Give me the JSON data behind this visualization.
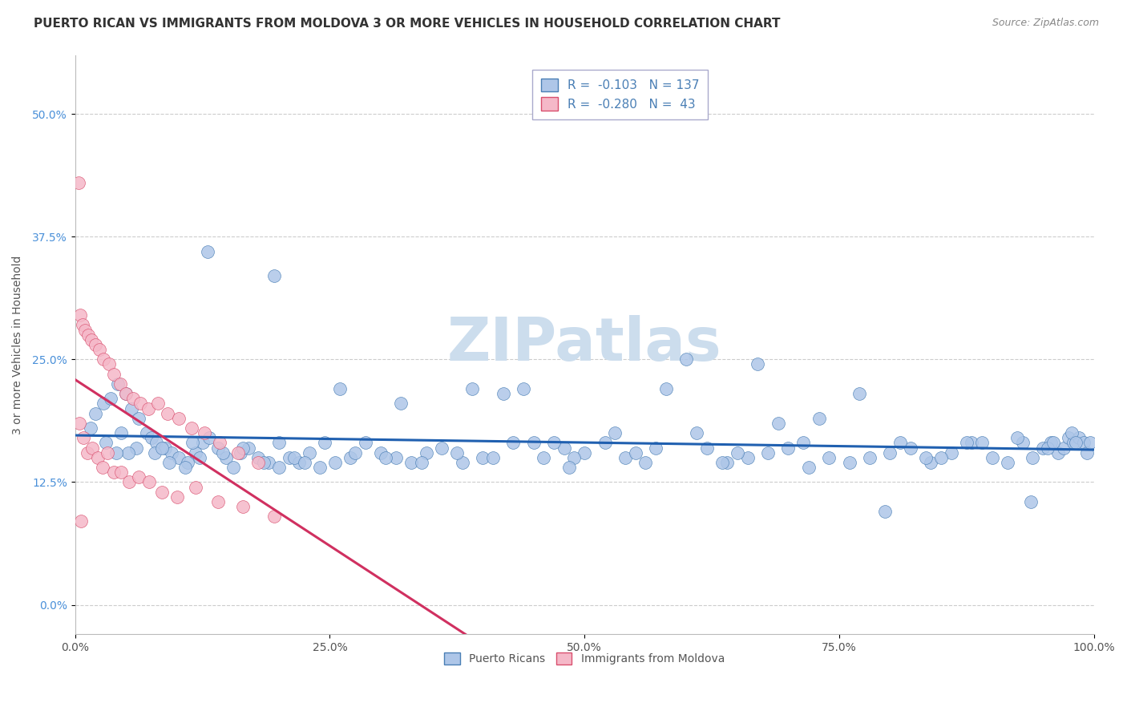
{
  "title": "PUERTO RICAN VS IMMIGRANTS FROM MOLDOVA 3 OR MORE VEHICLES IN HOUSEHOLD CORRELATION CHART",
  "source": "Source: ZipAtlas.com",
  "ylabel": "3 or more Vehicles in Household",
  "xlim": [
    0.0,
    100.0
  ],
  "ylim": [
    -3.0,
    56.0
  ],
  "yticks": [
    0.0,
    12.5,
    25.0,
    37.5,
    50.0
  ],
  "xticks": [
    0.0,
    25.0,
    50.0,
    75.0,
    100.0
  ],
  "xtick_labels": [
    "0.0%",
    "25.0%",
    "50.0%",
    "75.0%",
    "100.0%"
  ],
  "ytick_labels": [
    "0.0%",
    "12.5%",
    "25.0%",
    "37.5%",
    "50.0%"
  ],
  "blue_R": -0.103,
  "blue_N": 137,
  "pink_R": -0.28,
  "pink_N": 43,
  "blue_color": "#aec6e8",
  "pink_color": "#f5b8c8",
  "blue_edge_color": "#4a7fb5",
  "pink_edge_color": "#d94f6e",
  "blue_line_color": "#2060b0",
  "pink_line_color": "#d03060",
  "watermark": "ZIPatlas",
  "watermark_color": "#ccdded",
  "title_fontsize": 11,
  "tick_fontsize": 10,
  "legend_fontsize": 11,
  "blue_scatter_x": [
    1.5,
    2.0,
    2.8,
    3.5,
    4.2,
    5.0,
    5.5,
    6.2,
    7.0,
    7.5,
    8.0,
    8.8,
    9.5,
    10.2,
    11.0,
    11.8,
    12.5,
    13.2,
    14.0,
    14.8,
    15.5,
    16.2,
    17.0,
    18.0,
    19.0,
    20.0,
    21.0,
    22.0,
    23.0,
    24.0,
    25.5,
    27.0,
    28.5,
    30.0,
    31.5,
    33.0,
    34.5,
    36.0,
    38.0,
    40.0,
    42.0,
    44.0,
    46.0,
    48.0,
    50.0,
    52.0,
    54.0,
    56.0,
    58.0,
    60.0,
    62.0,
    64.0,
    66.0,
    68.0,
    70.0,
    72.0,
    74.0,
    76.0,
    78.0,
    80.0,
    82.0,
    84.0,
    86.0,
    88.0,
    90.0,
    91.5,
    93.0,
    94.0,
    95.0,
    95.8,
    96.5,
    97.0,
    97.5,
    98.0,
    98.5,
    99.0,
    99.3,
    99.6,
    3.0,
    4.5,
    6.0,
    7.8,
    9.2,
    10.8,
    12.2,
    14.5,
    16.5,
    18.5,
    21.5,
    24.5,
    27.5,
    30.5,
    34.0,
    37.5,
    41.0,
    45.0,
    49.0,
    53.0,
    57.0,
    61.0,
    65.0,
    69.0,
    73.0,
    77.0,
    81.0,
    85.0,
    89.0,
    92.5,
    95.5,
    97.8,
    5.2,
    8.5,
    13.0,
    19.5,
    26.0,
    32.0,
    39.0,
    47.0,
    55.0,
    63.5,
    71.5,
    79.5,
    87.5,
    93.8,
    98.2,
    20.0,
    43.0,
    67.0,
    83.5,
    96.0,
    4.0,
    11.5,
    22.5,
    48.5,
    72.5,
    91.0
  ],
  "blue_scatter_y": [
    18.0,
    19.5,
    20.5,
    21.0,
    22.5,
    21.5,
    20.0,
    19.0,
    17.5,
    17.0,
    16.5,
    16.0,
    15.5,
    15.0,
    14.5,
    15.5,
    16.5,
    17.0,
    16.0,
    15.0,
    14.0,
    15.5,
    16.0,
    15.0,
    14.5,
    14.0,
    15.0,
    14.5,
    15.5,
    14.0,
    14.5,
    15.0,
    16.5,
    15.5,
    15.0,
    14.5,
    15.5,
    16.0,
    14.5,
    15.0,
    21.5,
    22.0,
    15.0,
    16.0,
    15.5,
    16.5,
    15.0,
    14.5,
    22.0,
    25.0,
    16.0,
    14.5,
    15.0,
    15.5,
    16.0,
    14.0,
    15.0,
    14.5,
    15.0,
    15.5,
    16.0,
    14.5,
    15.5,
    16.5,
    15.0,
    14.5,
    16.5,
    15.0,
    16.0,
    16.5,
    15.5,
    16.0,
    17.0,
    16.5,
    17.0,
    16.5,
    15.5,
    16.5,
    16.5,
    17.5,
    16.0,
    15.5,
    14.5,
    14.0,
    15.0,
    15.5,
    16.0,
    14.5,
    15.0,
    16.5,
    15.5,
    15.0,
    14.5,
    15.5,
    15.0,
    16.5,
    15.0,
    17.5,
    16.0,
    17.5,
    15.5,
    18.5,
    19.0,
    21.5,
    16.5,
    15.0,
    16.5,
    17.0,
    16.0,
    17.5,
    15.5,
    16.0,
    36.0,
    33.5,
    22.0,
    20.5,
    22.0,
    16.5,
    15.5,
    14.5,
    16.5,
    9.5,
    16.5,
    10.5,
    16.5,
    16.5,
    16.5,
    24.5,
    15.0,
    16.5,
    15.5,
    16.5,
    14.5,
    14.0
  ],
  "pink_scatter_x": [
    0.3,
    0.5,
    0.7,
    1.0,
    1.3,
    1.6,
    2.0,
    2.4,
    2.8,
    3.3,
    3.8,
    4.4,
    5.0,
    5.7,
    6.4,
    7.2,
    8.1,
    9.1,
    10.2,
    11.4,
    12.7,
    14.2,
    16.0,
    18.0,
    0.4,
    0.8,
    1.2,
    1.7,
    2.2,
    2.7,
    3.2,
    3.8,
    4.5,
    5.3,
    6.2,
    7.3,
    8.5,
    10.0,
    11.8,
    14.0,
    16.5,
    19.5,
    0.6
  ],
  "pink_scatter_y": [
    43.0,
    29.5,
    28.5,
    28.0,
    27.5,
    27.0,
    26.5,
    26.0,
    25.0,
    24.5,
    23.5,
    22.5,
    21.5,
    21.0,
    20.5,
    20.0,
    20.5,
    19.5,
    19.0,
    18.0,
    17.5,
    16.5,
    15.5,
    14.5,
    18.5,
    17.0,
    15.5,
    16.0,
    15.0,
    14.0,
    15.5,
    13.5,
    13.5,
    12.5,
    13.0,
    12.5,
    11.5,
    11.0,
    12.0,
    10.5,
    10.0,
    9.0,
    8.5
  ]
}
